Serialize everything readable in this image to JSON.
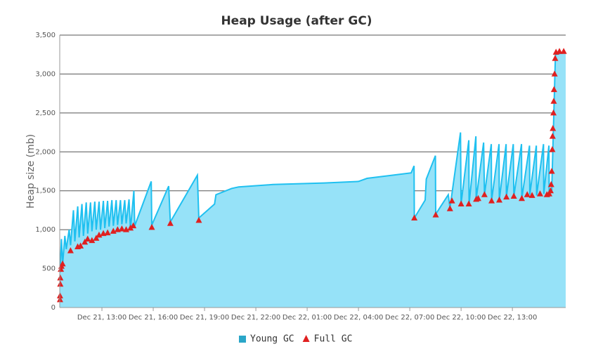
{
  "chart_data": {
    "type": "area",
    "title": "Heap Usage (after GC)",
    "y_label": "Heap size (mb)",
    "grid": true,
    "xlim": [
      "Dec 21, 10:32",
      "Dec 22, 16:07"
    ],
    "xticks": [
      "Dec 21, 13:00",
      "Dec 21, 16:00",
      "Dec 21, 19:00",
      "Dec 21, 22:00",
      "Dec 22, 01:00",
      "Dec 22, 04:00",
      "Dec 22, 07:00",
      "Dec 22, 10:00",
      "Dec 22, 13:00"
    ],
    "ylim": [
      0,
      3500
    ],
    "yticks": [
      0,
      500,
      {
        "value": 1000,
        "label": "1,000"
      },
      {
        "value": 1500,
        "label": "1,500"
      },
      {
        "value": 2000,
        "label": "2,000"
      },
      {
        "value": 2500,
        "label": "2,500"
      },
      {
        "value": 3000,
        "label": "3,000"
      },
      {
        "value": 3500,
        "label": "3,500"
      }
    ],
    "series": [
      {
        "name": "Young GC",
        "color": "#2aa6c8",
        "line_color": "#1fc0f0",
        "fill": "#96e2f8",
        "marker": "square",
        "x": [
          "Dec 21, 10:33",
          "Dec 21, 10:38",
          "Dec 21, 10:42",
          "Dec 21, 10:50",
          "Dec 21, 10:55",
          "Dec 21, 11:05",
          "Dec 21, 11:10",
          "Dec 21, 11:20",
          "Dec 21, 11:25",
          "Dec 21, 11:35",
          "Dec 21, 11:40",
          "Dec 21, 11:50",
          "Dec 21, 11:55",
          "Dec 21, 12:05",
          "Dec 21, 12:10",
          "Dec 21, 12:20",
          "Dec 21, 12:25",
          "Dec 21, 12:35",
          "Dec 21, 12:40",
          "Dec 21, 12:50",
          "Dec 21, 12:55",
          "Dec 21, 13:05",
          "Dec 21, 13:10",
          "Dec 21, 13:20",
          "Dec 21, 13:25",
          "Dec 21, 13:35",
          "Dec 21, 13:40",
          "Dec 21, 13:50",
          "Dec 21, 13:55",
          "Dec 21, 14:05",
          "Dec 21, 14:10",
          "Dec 21, 14:20",
          "Dec 21, 14:25",
          "Dec 21, 14:35",
          "Dec 21, 14:40",
          "Dec 21, 14:52",
          "Dec 21, 14:55",
          "Dec 21, 15:53",
          "Dec 21, 15:55",
          "Dec 21, 16:54",
          "Dec 21, 17:00",
          "Dec 21, 18:35",
          "Dec 21, 18:40",
          "Dec 21, 19:35",
          "Dec 21, 19:40",
          "Dec 21, 20:35",
          "Dec 21, 21:00",
          "Dec 21, 23:00",
          "Dec 22, 02:00",
          "Dec 22, 04:00",
          "Dec 22, 04:30",
          "Dec 22, 06:00",
          "Dec 22, 07:05",
          "Dec 22, 07:15",
          "Dec 22, 07:16",
          "Dec 22, 07:54",
          "Dec 22, 07:58",
          "Dec 22, 08:30",
          "Dec 22, 08:31",
          "Dec 22, 09:15",
          "Dec 22, 09:21",
          "Dec 22, 09:58",
          "Dec 22, 10:00",
          "Dec 22, 10:27",
          "Dec 22, 10:28",
          "Dec 22, 10:52",
          "Dec 22, 10:53",
          "Dec 22, 11:19",
          "Dec 22, 11:22",
          "Dec 22, 11:46",
          "Dec 22, 11:47",
          "Dec 22, 12:13",
          "Dec 22, 12:14",
          "Dec 22, 12:38",
          "Dec 22, 12:39",
          "Dec 22, 13:03",
          "Dec 22, 13:05",
          "Dec 22, 13:32",
          "Dec 22, 13:33",
          "Dec 22, 14:00",
          "Dec 22, 14:01",
          "Dec 22, 14:24",
          "Dec 22, 14:25",
          "Dec 22, 14:49",
          "Dec 22, 14:50",
          "Dec 22, 15:08",
          "Dec 22, 15:09",
          "Dec 22, 15:18",
          "Dec 22, 15:31",
          "Dec 22, 16:07"
        ],
        "values": [
          450,
          880,
          550,
          920,
          750,
          1000,
          800,
          1250,
          850,
          1300,
          900,
          1330,
          920,
          1350,
          950,
          1350,
          980,
          1360,
          1000,
          1360,
          1000,
          1370,
          1020,
          1370,
          1040,
          1380,
          1050,
          1380,
          1060,
          1380,
          1070,
          1380,
          1080,
          1390,
          1000,
          1500,
          1050,
          1620,
          1060,
          1560,
          1100,
          1700,
          1150,
          1330,
          1450,
          1530,
          1550,
          1580,
          1600,
          1620,
          1660,
          1700,
          1730,
          1820,
          1150,
          1380,
          1650,
          1950,
          1200,
          1450,
          1280,
          2250,
          1330,
          2150,
          1330,
          2200,
          1390,
          2120,
          1450,
          2100,
          1370,
          2100,
          1380,
          2100,
          1420,
          2100,
          1430,
          2100,
          1400,
          2080,
          1450,
          2080,
          1440,
          2100,
          1460,
          2080,
          1460,
          1500,
          3250,
          3280
        ]
      },
      {
        "name": "Full GC",
        "color": "#e02020",
        "marker": "triangle",
        "x": [
          "Dec 21, 10:33",
          "Dec 21, 10:33",
          "Dec 21, 10:34",
          "Dec 21, 10:34",
          "Dec 21, 10:36",
          "Dec 21, 10:38",
          "Dec 21, 10:42",
          "Dec 21, 11:10",
          "Dec 21, 11:35",
          "Dec 21, 11:45",
          "Dec 21, 12:00",
          "Dec 21, 12:10",
          "Dec 21, 12:25",
          "Dec 21, 12:40",
          "Dec 21, 12:50",
          "Dec 21, 13:05",
          "Dec 21, 13:20",
          "Dec 21, 13:40",
          "Dec 21, 13:55",
          "Dec 21, 14:10",
          "Dec 21, 14:25",
          "Dec 21, 14:40",
          "Dec 21, 14:50",
          "Dec 21, 15:55",
          "Dec 21, 17:00",
          "Dec 21, 18:40",
          "Dec 22, 07:16",
          "Dec 22, 08:31",
          "Dec 22, 09:21",
          "Dec 22, 09:28",
          "Dec 22, 10:00",
          "Dec 22, 10:27",
          "Dec 22, 10:53",
          "Dec 22, 11:00",
          "Dec 22, 11:22",
          "Dec 22, 11:47",
          "Dec 22, 12:14",
          "Dec 22, 12:39",
          "Dec 22, 13:05",
          "Dec 22, 13:33",
          "Dec 22, 13:52",
          "Dec 22, 14:09",
          "Dec 22, 14:37",
          "Dec 22, 15:01",
          "Dec 22, 15:09",
          "Dec 22, 15:14",
          "Dec 22, 15:16",
          "Dec 22, 15:18",
          "Dec 22, 15:20",
          "Dec 22, 15:21",
          "Dec 22, 15:22",
          "Dec 22, 15:24",
          "Dec 22, 15:25",
          "Dec 22, 15:26",
          "Dec 22, 15:28",
          "Dec 22, 15:30",
          "Dec 22, 15:33",
          "Dec 22, 15:45",
          "Dec 22, 16:00"
        ],
        "values": [
          100,
          150,
          300,
          380,
          490,
          530,
          560,
          730,
          780,
          790,
          840,
          880,
          860,
          890,
          930,
          950,
          960,
          980,
          1000,
          1010,
          1000,
          1020,
          1050,
          1030,
          1080,
          1120,
          1150,
          1190,
          1270,
          1370,
          1330,
          1330,
          1390,
          1400,
          1450,
          1370,
          1380,
          1420,
          1430,
          1400,
          1450,
          1440,
          1460,
          1450,
          1460,
          1500,
          1580,
          1750,
          2030,
          2200,
          2300,
          2500,
          2650,
          2800,
          3000,
          3200,
          3280,
          3290,
          3290
        ]
      }
    ]
  }
}
